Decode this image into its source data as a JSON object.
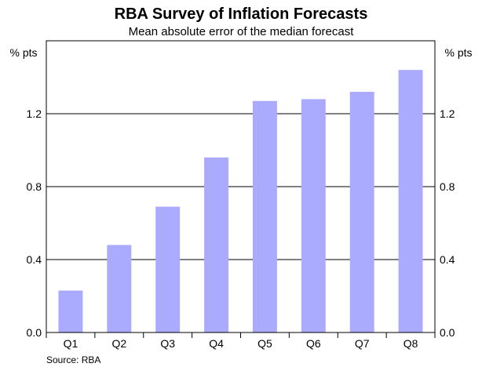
{
  "chart_data": {
    "type": "bar",
    "title": "RBA Survey of Inflation Forecasts",
    "subtitle": "Mean absolute error of the median forecast",
    "categories": [
      "Q1",
      "Q2",
      "Q3",
      "Q4",
      "Q5",
      "Q6",
      "Q7",
      "Q8"
    ],
    "values": [
      0.23,
      0.48,
      0.69,
      0.96,
      1.27,
      1.28,
      1.32,
      1.44
    ],
    "yunit_left": "% pts",
    "yunit_right": "% pts",
    "ylim": [
      0.0,
      1.6
    ],
    "yticks": [
      0.0,
      0.4,
      0.8,
      1.2
    ],
    "ytick_labels": [
      "0.0",
      "0.4",
      "0.8",
      "1.2"
    ],
    "grid": true,
    "bar_color": "#aaaaff",
    "source": "Source: RBA"
  }
}
